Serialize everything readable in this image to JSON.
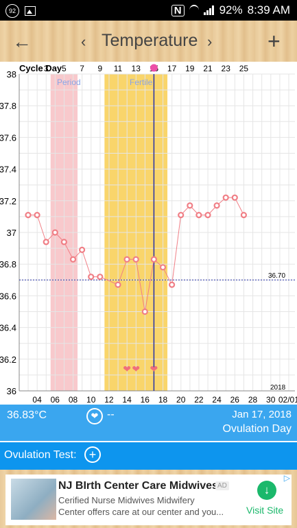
{
  "status": {
    "notif_badge": "92",
    "battery": "92%",
    "time": "8:39 AM",
    "nfc": "N"
  },
  "header": {
    "back_icon": "←",
    "prev_icon": "‹",
    "title": "Temperature",
    "next_icon": "›",
    "add_icon": "+"
  },
  "chart_data": {
    "type": "line",
    "ylim": [
      36.0,
      38.0
    ],
    "yticks": [
      "38",
      "37.8",
      "37.6",
      "37.4",
      "37.2",
      "37",
      "36.8",
      "36.6",
      "36.4",
      "36.2",
      "36"
    ],
    "cycle_day_label": "Cycle Day",
    "cycle_days": [
      "1",
      "3",
      "5",
      "7",
      "9",
      "11",
      "13",
      "15",
      "17",
      "19",
      "21",
      "23",
      "25"
    ],
    "date_ticks": [
      "04",
      "06",
      "08",
      "10",
      "12",
      "14",
      "16",
      "18",
      "20",
      "22",
      "24",
      "26",
      "28",
      "30",
      "02/01"
    ],
    "year_label": "2018",
    "coverline": 36.7,
    "coverline_label": "36.70",
    "period_label": "Period",
    "fertile_label": "Fertile",
    "period_color": "#f8c9cc",
    "fertile_color": "#f9d56b",
    "line_color": "#f07f86",
    "ovulation_color": "#2430a8",
    "series": [
      {
        "values": [
          {
            "day": 1,
            "temp": 37.11
          },
          {
            "day": 2,
            "temp": 37.11
          },
          {
            "day": 3,
            "temp": 36.94
          },
          {
            "day": 4,
            "temp": 37.0
          },
          {
            "day": 5,
            "temp": 36.94
          },
          {
            "day": 6,
            "temp": 36.83
          },
          {
            "day": 7,
            "temp": 36.89
          },
          {
            "day": 8,
            "temp": 36.72
          },
          {
            "day": 9,
            "temp": 36.72
          },
          {
            "day": 11,
            "temp": 36.67
          },
          {
            "day": 12,
            "temp": 36.83
          },
          {
            "day": 13,
            "temp": 36.83
          },
          {
            "day": 14,
            "temp": 36.5
          },
          {
            "day": 15,
            "temp": 36.83
          },
          {
            "day": 16,
            "temp": 36.78
          },
          {
            "day": 17,
            "temp": 36.67
          },
          {
            "day": 18,
            "temp": 37.11
          },
          {
            "day": 19,
            "temp": 37.17
          },
          {
            "day": 20,
            "temp": 37.11
          },
          {
            "day": 21,
            "temp": 37.11
          },
          {
            "day": 22,
            "temp": 37.17
          },
          {
            "day": 23,
            "temp": 37.22
          },
          {
            "day": 24,
            "temp": 37.22
          },
          {
            "day": 25,
            "temp": 37.11
          }
        ]
      }
    ],
    "hearts": [
      {
        "day": 12,
        "symbol": "❤"
      },
      {
        "day": 13,
        "symbol": "❤"
      },
      {
        "day": 15,
        "symbol": "❤"
      }
    ]
  },
  "info": {
    "temperature": "36.83°C",
    "heart_icon": "❤",
    "dash": "--",
    "date": "Jan 17, 2018",
    "status": "Ovulation Day"
  },
  "ovulation_test": {
    "label": "Ovulation Test:",
    "add_icon": "+"
  },
  "ad": {
    "headline": "NJ BIrth Center Care Midwives",
    "tag": "AD",
    "body_line1": "Cerified Nurse Midwives Midwifery",
    "body_line2": "Center offers care at our center and you...",
    "cta": "Visit Site",
    "cta_icon": "↓",
    "adchoices_icon": "▷"
  }
}
